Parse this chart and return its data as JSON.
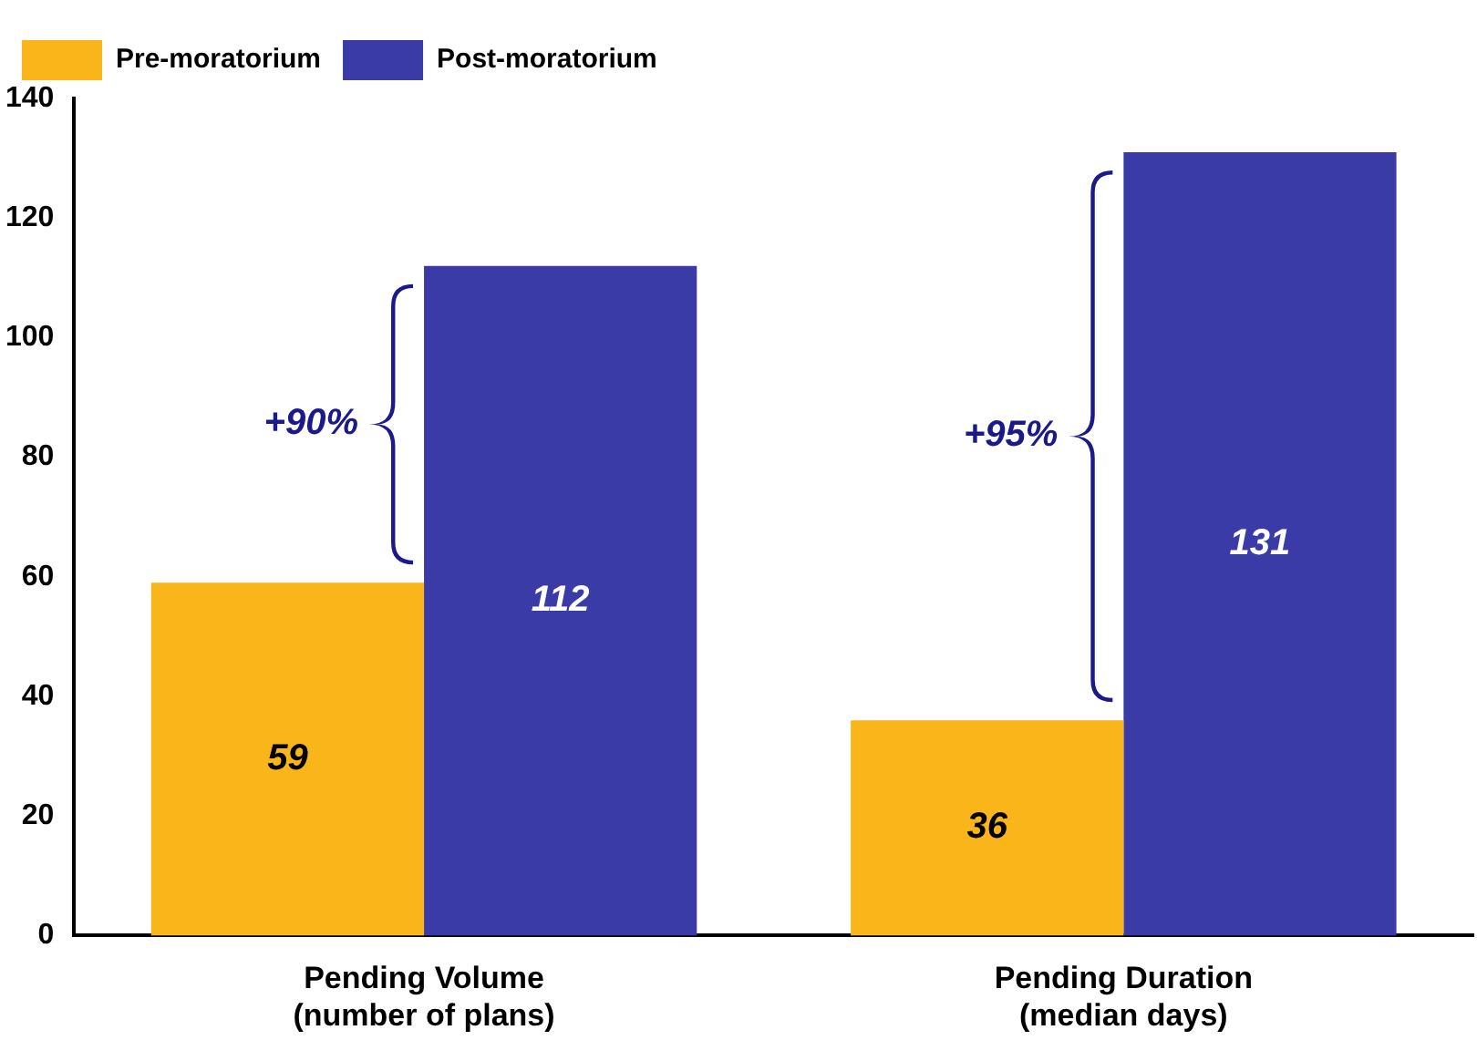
{
  "chart_data": {
    "type": "bar",
    "categories": [
      "Pending Volume\n(number of plans)",
      "Pending Duration\n(median days)"
    ],
    "series": [
      {
        "name": "Pre-moratorium",
        "color": "#f9b51a",
        "values": [
          59,
          36
        ]
      },
      {
        "name": "Post-moratorium",
        "color": "#3b3ba8",
        "values": [
          112,
          131
        ]
      }
    ],
    "ylim": [
      0,
      140
    ],
    "yticks": [
      0,
      20,
      40,
      60,
      80,
      100,
      120,
      140
    ],
    "grid": false,
    "legend": "top left",
    "data_labels": true,
    "annotations": [
      "+90%",
      "+95%"
    ]
  }
}
